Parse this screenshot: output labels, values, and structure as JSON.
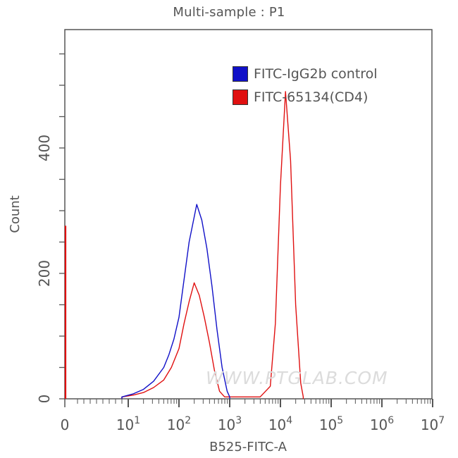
{
  "chart_data": {
    "type": "line",
    "subtype": "flow-cytometry-histogram-overlay",
    "title": "Multi-sample : P1",
    "xlabel": "B525-FITC-A",
    "ylabel": "Count",
    "x_scale": "log (biexponential, 0 at left)",
    "x_ticks": [
      "0",
      "10^1",
      "10^2",
      "10^3",
      "10^4",
      "10^5",
      "10^6",
      "10^7"
    ],
    "y_ticks": [
      0,
      200,
      400
    ],
    "ylim": [
      0,
      590
    ],
    "grid": false,
    "legend_position": "top-right inside plot",
    "series": [
      {
        "name": "FITC-IgG2b control",
        "color": "#1010c8",
        "points": [
          {
            "x_log": 0.9,
            "y": 3
          },
          {
            "x_log": 1.1,
            "y": 8
          },
          {
            "x_log": 1.3,
            "y": 15
          },
          {
            "x_log": 1.5,
            "y": 28
          },
          {
            "x_log": 1.7,
            "y": 50
          },
          {
            "x_log": 1.8,
            "y": 70
          },
          {
            "x_log": 1.9,
            "y": 95
          },
          {
            "x_log": 2.0,
            "y": 130
          },
          {
            "x_log": 2.1,
            "y": 190
          },
          {
            "x_log": 2.2,
            "y": 250
          },
          {
            "x_log": 2.35,
            "y": 310
          },
          {
            "x_log": 2.45,
            "y": 285
          },
          {
            "x_log": 2.55,
            "y": 240
          },
          {
            "x_log": 2.65,
            "y": 180
          },
          {
            "x_log": 2.75,
            "y": 110
          },
          {
            "x_log": 2.85,
            "y": 50
          },
          {
            "x_log": 2.95,
            "y": 12
          },
          {
            "x_log": 3.0,
            "y": 3
          }
        ],
        "peak": {
          "x": "~2.3e2",
          "count": 310
        }
      },
      {
        "name": "FITC-65134(CD4)",
        "color": "#e01010",
        "zero_bin_count": 276,
        "points": [
          {
            "x_log": 0.9,
            "y": 3
          },
          {
            "x_log": 1.1,
            "y": 6
          },
          {
            "x_log": 1.3,
            "y": 10
          },
          {
            "x_log": 1.5,
            "y": 18
          },
          {
            "x_log": 1.7,
            "y": 30
          },
          {
            "x_log": 1.85,
            "y": 50
          },
          {
            "x_log": 2.0,
            "y": 80
          },
          {
            "x_log": 2.1,
            "y": 120
          },
          {
            "x_log": 2.2,
            "y": 155
          },
          {
            "x_log": 2.3,
            "y": 185
          },
          {
            "x_log": 2.4,
            "y": 165
          },
          {
            "x_log": 2.5,
            "y": 130
          },
          {
            "x_log": 2.6,
            "y": 90
          },
          {
            "x_log": 2.7,
            "y": 45
          },
          {
            "x_log": 2.8,
            "y": 12
          },
          {
            "x_log": 2.9,
            "y": 3
          },
          {
            "x_log": 3.6,
            "y": 3
          },
          {
            "x_log": 3.8,
            "y": 20
          },
          {
            "x_log": 3.9,
            "y": 120
          },
          {
            "x_log": 4.0,
            "y": 340
          },
          {
            "x_log": 4.1,
            "y": 490
          },
          {
            "x_log": 4.2,
            "y": 380
          },
          {
            "x_log": 4.3,
            "y": 150
          },
          {
            "x_log": 4.4,
            "y": 25
          },
          {
            "x_log": 4.45,
            "y": 3
          }
        ],
        "peak": {
          "x": "~1.3e4",
          "count": 490
        }
      }
    ]
  },
  "title": "Multi-sample : P1",
  "axes": {
    "x_title": "B525-FITC-A",
    "y_title": "Count",
    "x_labels": [
      {
        "base": "0",
        "exp": ""
      },
      {
        "base": "10",
        "exp": "1"
      },
      {
        "base": "10",
        "exp": "2"
      },
      {
        "base": "10",
        "exp": "3"
      },
      {
        "base": "10",
        "exp": "4"
      },
      {
        "base": "10",
        "exp": "5"
      },
      {
        "base": "10",
        "exp": "6"
      },
      {
        "base": "10",
        "exp": "7"
      }
    ],
    "y_labels": [
      "0",
      "200",
      "400"
    ]
  },
  "legend": [
    {
      "label": "FITC-IgG2b control",
      "color": "#1010c8"
    },
    {
      "label": "FITC-65134(CD4)",
      "color": "#e01010"
    }
  ],
  "watermark": "WWW.PTGLAB.COM"
}
